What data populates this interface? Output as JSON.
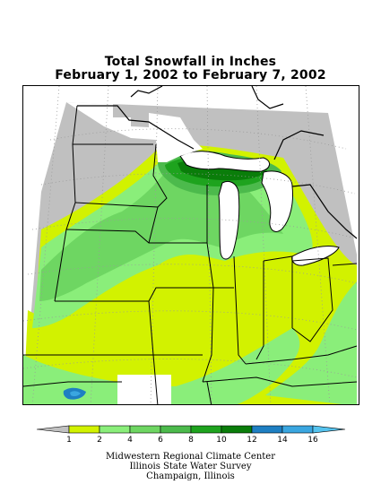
{
  "title": {
    "line1": "Total Snowfall in Inches",
    "line2": "February 1, 2002 to February 7, 2002"
  },
  "legend": {
    "ticks": [
      "1",
      "2",
      "4",
      "6",
      "8",
      "10",
      "12",
      "14",
      "16"
    ],
    "colors": {
      "lt1": "#c0c0c0",
      "b1_2": "#d2f200",
      "b2_4": "#8aee7a",
      "b4_6": "#6ed662",
      "b6_8": "#4cba4c",
      "b8_10": "#1ea31e",
      "b10_12": "#0a7d0a",
      "b12_14": "#1e7fc2",
      "b14_16": "#3aa6e0",
      "gt16": "#55c3ee"
    }
  },
  "map": {
    "colors": {
      "none": "#ffffff",
      "water": "#ffffff",
      "border": "#000000",
      "grid": "#9a9a9a"
    }
  },
  "credits": {
    "line1": "Midwestern Regional Climate Center",
    "line2": "Illinois State Water Survey",
    "line3": "Champaign, Illinois"
  }
}
